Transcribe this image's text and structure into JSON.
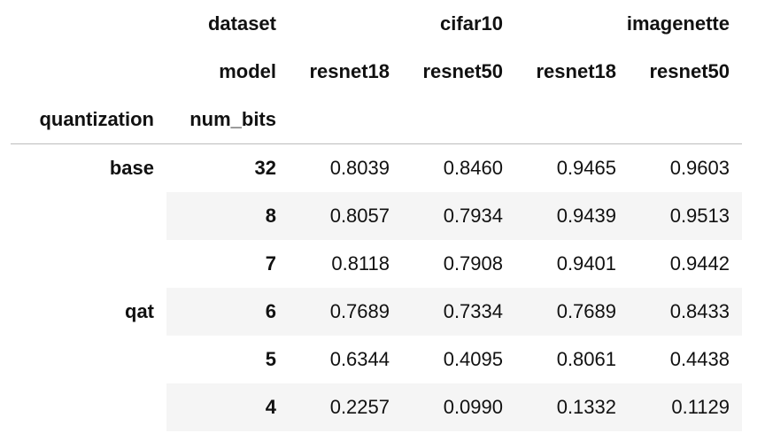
{
  "columns": {
    "level0_label": "dataset",
    "level1_label": "model",
    "datasets": [
      "cifar10",
      "imagenette"
    ],
    "models": [
      "resnet18",
      "resnet50",
      "resnet18",
      "resnet50"
    ]
  },
  "index_names": [
    "quantization",
    "num_bits"
  ],
  "groups": [
    {
      "quantization": "base",
      "rows": [
        {
          "num_bits": "32",
          "values": [
            "0.8039",
            "0.8460",
            "0.9465",
            "0.9603"
          ]
        }
      ]
    },
    {
      "quantization": "qat",
      "rows": [
        {
          "num_bits": "8",
          "values": [
            "0.8057",
            "0.7934",
            "0.9439",
            "0.9513"
          ]
        },
        {
          "num_bits": "7",
          "values": [
            "0.8118",
            "0.7908",
            "0.9401",
            "0.9442"
          ]
        },
        {
          "num_bits": "6",
          "values": [
            "0.7689",
            "0.7334",
            "0.7689",
            "0.8433"
          ]
        },
        {
          "num_bits": "5",
          "values": [
            "0.6344",
            "0.4095",
            "0.8061",
            "0.4438"
          ]
        },
        {
          "num_bits": "4",
          "values": [
            "0.2257",
            "0.0990",
            "0.1332",
            "0.1129"
          ]
        }
      ]
    }
  ]
}
